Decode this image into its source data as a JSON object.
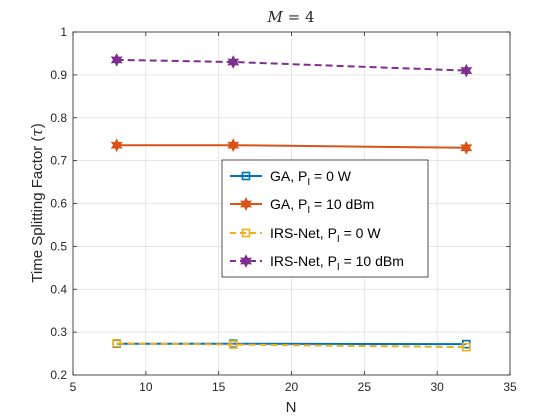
{
  "chart_data": {
    "type": "line",
    "title_math": "M",
    "title_rest": " = 4",
    "xlabel": "N",
    "ylabel_text": "Time Splitting Factor (",
    "ylabel_symbol": "τ",
    "ylabel_close": ")",
    "xlim": [
      5,
      35
    ],
    "ylim": [
      0.2,
      1
    ],
    "xticks": [
      5,
      10,
      15,
      20,
      25,
      30,
      35
    ],
    "yticks": [
      0.2,
      0.3,
      0.4,
      0.5,
      0.6,
      0.7,
      0.8,
      0.9,
      1
    ],
    "ytick_labels": [
      "0.2",
      "0.3",
      "0.4",
      "0.5",
      "0.6",
      "0.7",
      "0.8",
      "0.9",
      "1"
    ],
    "grid": true,
    "legend_position": "center-right",
    "x": [
      8,
      16,
      32
    ],
    "series": [
      {
        "name_main": "GA, P",
        "name_sub": "I",
        "name_rest": " = 0 W",
        "values": [
          0.273,
          0.273,
          0.272
        ],
        "color": "#0072BD",
        "dash": "solid",
        "marker": "square"
      },
      {
        "name_main": "GA, P",
        "name_sub": "I",
        "name_rest": " = 10 dBm",
        "values": [
          0.736,
          0.736,
          0.73
        ],
        "color": "#D95319",
        "dash": "solid",
        "marker": "hexagram"
      },
      {
        "name_main": "IRS-Net, P",
        "name_sub": "I",
        "name_rest": " = 0 W",
        "values": [
          0.274,
          0.271,
          0.265
        ],
        "color": "#EDB120",
        "dash": "dashed",
        "marker": "square"
      },
      {
        "name_main": "IRS-Net, P",
        "name_sub": "I",
        "name_rest": " = 10 dBm",
        "values": [
          0.935,
          0.93,
          0.91
        ],
        "color": "#7E2F8E",
        "dash": "dashed",
        "marker": "hexagram"
      }
    ]
  }
}
